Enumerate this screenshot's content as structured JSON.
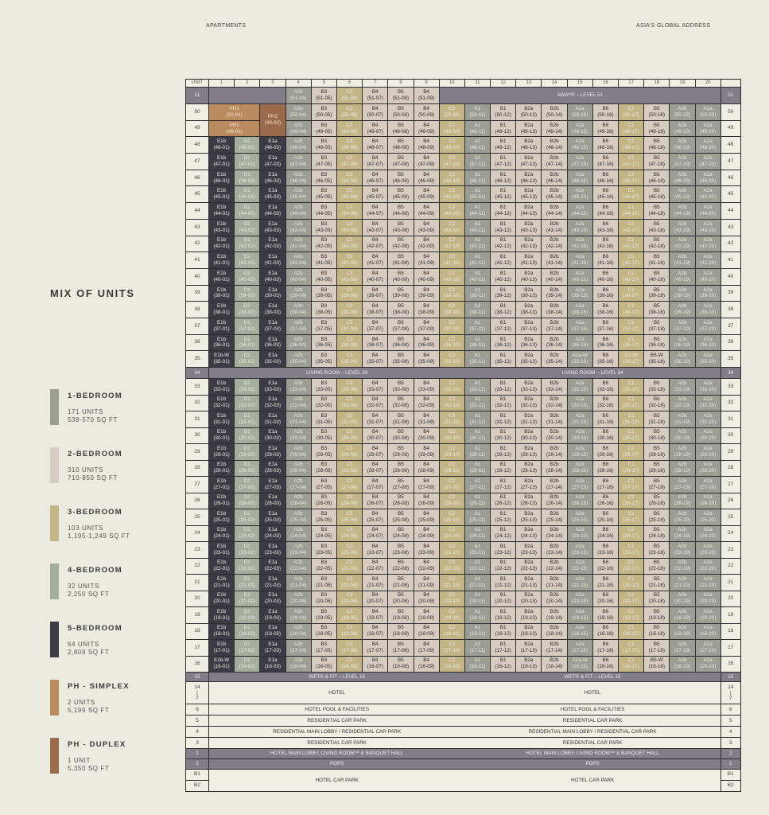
{
  "header": {
    "left": "APARTMENTS",
    "right": "ASIA'S GLOBAL ADDRESS"
  },
  "mix_title": "MIX OF UNITS",
  "colors": {
    "A": "#9c9d93",
    "B": "#d8cbc0",
    "C": "#c4b587",
    "D": "#a3ae9d",
    "E": "#3c3b45",
    "PHs": "#b98b5f",
    "PHd": "#9a6a4a"
  },
  "legend": [
    {
      "name": "1-BEDROOM",
      "units": "171 UNITS",
      "size": "538-570 SQ FT",
      "cat": "A"
    },
    {
      "name": "2-BEDROOM",
      "units": "310 UNITS",
      "size": "710-850 SQ FT",
      "cat": "B"
    },
    {
      "name": "3-BEDROOM",
      "units": "103 UNITS",
      "size": "1,195-1,249 SQ FT",
      "cat": "C"
    },
    {
      "name": "4-BEDROOM",
      "units": "32 UNITS",
      "size": "2,250 SQ FT",
      "cat": "D"
    },
    {
      "name": "5-BEDROOM",
      "units": "64 UNITS",
      "size": "2,809 SQ FT",
      "cat": "E"
    },
    {
      "name": "PH - SIMPLEX",
      "units": "2 UNITS",
      "size": "5,199 SQ FT",
      "cat": "PHs"
    },
    {
      "name": "PH - DUPLEX",
      "units": "1 UNIT",
      "size": "5,350 SQ FT",
      "cat": "PHd"
    }
  ],
  "table": {
    "unit_header": "UNIT",
    "columns": [
      {
        "no": "1",
        "type": "E1b",
        "cat": "E"
      },
      {
        "no": "2",
        "type": "D1",
        "cat": "D"
      },
      {
        "no": "3",
        "type": "E1a",
        "cat": "E"
      },
      {
        "no": "4",
        "type": "A2b",
        "cat": "A"
      },
      {
        "no": "5",
        "type": "B3",
        "cat": "B"
      },
      {
        "no": "6",
        "type": "C3",
        "cat": "C"
      },
      {
        "no": "7",
        "type": "B4",
        "cat": "B"
      },
      {
        "no": "8",
        "type": "B5",
        "cat": "B"
      },
      {
        "no": "9",
        "type": "B4",
        "cat": "B"
      },
      {
        "no": "10",
        "type": "C2",
        "cat": "C"
      },
      {
        "no": "11",
        "type": "A1",
        "cat": "A"
      },
      {
        "no": "12",
        "type": "B1",
        "cat": "B"
      },
      {
        "no": "13",
        "type": "B2a",
        "cat": "B"
      },
      {
        "no": "14",
        "type": "B2b",
        "cat": "B"
      },
      {
        "no": "15",
        "type": "A2a",
        "cat": "A"
      },
      {
        "no": "16",
        "type": "B6",
        "cat": "B"
      },
      {
        "no": "17",
        "type": "C1",
        "cat": "C"
      },
      {
        "no": "18",
        "type": "B5",
        "cat": "B"
      },
      {
        "no": "19",
        "type": "A2b",
        "cat": "A"
      },
      {
        "no": "20",
        "type": "A2a",
        "cat": "A"
      }
    ],
    "level51": {
      "floor": "51",
      "unit_cols": [
        4,
        5,
        6,
        7,
        8,
        9
      ],
      "band": "AWAY® – LEVEL 51"
    },
    "floors_upper": [
      50,
      49,
      48,
      47,
      46,
      45,
      44,
      43,
      42,
      41,
      40,
      39,
      38,
      37,
      36,
      35
    ],
    "level34": {
      "floor": "34",
      "left": "LIVING ROOM – LEVEL 34",
      "right": "LIVING ROOM – LEVEL 34"
    },
    "floors_lower": [
      33,
      32,
      31,
      30,
      29,
      28,
      27,
      26,
      25,
      24,
      23,
      22,
      21,
      20,
      19,
      18,
      17,
      16
    ],
    "overrides": {
      "35": {
        "1": "E1b-W",
        "15": "A2a-W",
        "17": "C1-W",
        "18": "B5-W"
      },
      "16": {
        "1": "E1b-W",
        "15": "A2a-W",
        "18": "B5-W"
      }
    },
    "penthouses": [
      {
        "type": "PH1",
        "unit": "(50-01)",
        "floors": [
          50
        ],
        "cols": [
          1,
          2
        ],
        "cat": "PHs"
      },
      {
        "type": "PH1",
        "unit": "(49-01)",
        "floors": [
          49
        ],
        "cols": [
          1,
          2
        ],
        "cat": "PHs"
      },
      {
        "type": "PH2",
        "unit": "(49-02)",
        "floors": [
          50,
          49
        ],
        "cols": [
          3
        ],
        "cat": "PHd"
      }
    ],
    "podium": [
      {
        "label": "15",
        "left": "WET® & FIT – LEVEL 15",
        "right": "WET® & FIT – LEVEL 15",
        "dark": true
      },
      {
        "label": "14\n|\n7",
        "left": "HOTEL",
        "right": "HOTEL",
        "dark": false
      },
      {
        "label": "6",
        "left": "HOTEL POOL & FACILITIES",
        "right": "HOTEL POOL & FACILITIES",
        "dark": false
      },
      {
        "label": "5",
        "left": "RESIDENTIAL CAR PARK",
        "right": "RESIDENTIAL CAR PARK",
        "dark": false
      },
      {
        "label": "4",
        "left": "RESIDENTIAL MAIN LOBBY / RESIDENTIAL CAR PARK",
        "right": "RESIDENTIAL MAIN LOBBY / RESIDENTIAL CAR PARK",
        "dark": false
      },
      {
        "label": "3",
        "left": "RESIDENTIAL CAR PARK",
        "right": "RESIDENTIAL CAR PARK",
        "dark": false
      },
      {
        "label": "2",
        "left": "HOTEL MAIN LOBBY, LIVING ROOM™ & BANQUET HALL",
        "right": "HOTEL MAIN LOBBY, LIVING ROOM™ & BANQUET HALL",
        "dark": true
      },
      {
        "label": "1",
        "left": "POPS",
        "right": "POPS",
        "dark": true
      }
    ],
    "basement": {
      "labels": [
        "B1",
        "B2"
      ],
      "left": "HOTEL CAR PARK",
      "right": "HOTEL CAR PARK"
    }
  }
}
